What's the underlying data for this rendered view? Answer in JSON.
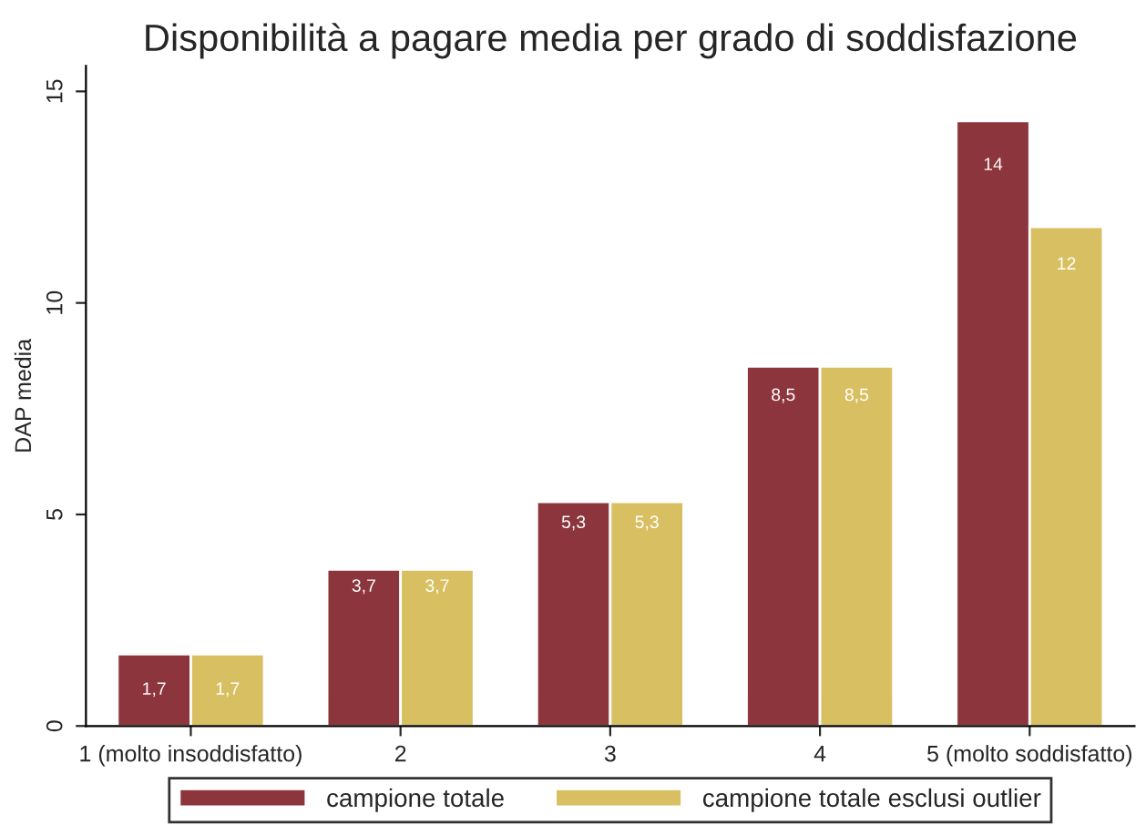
{
  "chart_data": {
    "type": "bar",
    "title": "Disponibilità a pagare media per grado di soddisfazione",
    "ylabel": "DAP media",
    "categories": [
      "1 (molto insoddisfatto)",
      "2",
      "3",
      "4",
      "5 (molto soddisfatto)"
    ],
    "series": [
      {
        "name": "campione totale",
        "color": "#8c353d",
        "values": [
          1.7,
          3.7,
          5.3,
          8.5,
          14.3
        ],
        "value_labels": [
          "1,7",
          "3,7",
          "5,3",
          "8,5",
          "14"
        ]
      },
      {
        "name": "campione totale esclusi outlier",
        "color": "#d8c062",
        "values": [
          1.7,
          3.7,
          5.3,
          8.5,
          11.8
        ],
        "value_labels": [
          "1,7",
          "3,7",
          "5,3",
          "8,5",
          "12"
        ]
      }
    ],
    "ylim": [
      0,
      15.6
    ],
    "yticks": [
      0,
      5,
      10,
      15
    ],
    "grid": false,
    "legend": "bottom"
  }
}
